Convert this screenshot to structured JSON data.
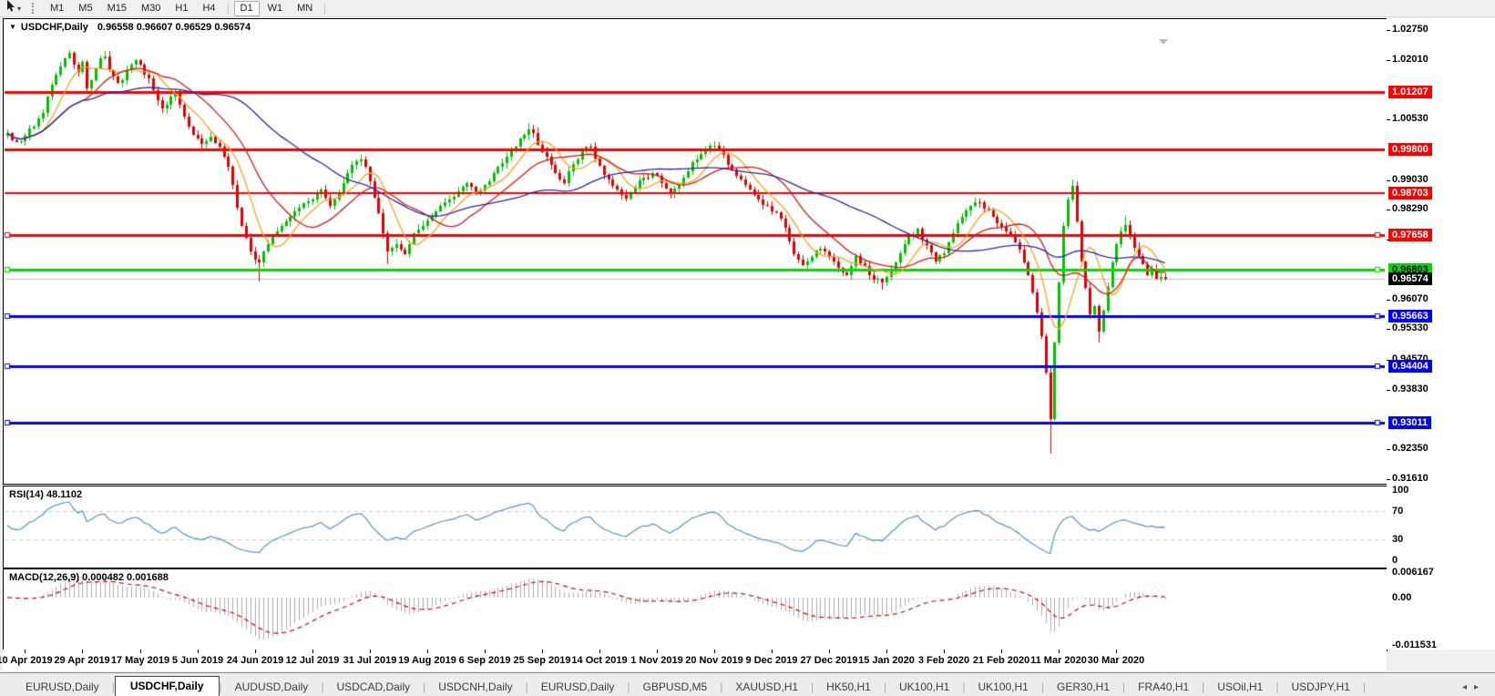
{
  "toolbar": {
    "cursor_tool": "cursor-pointer",
    "timeframes": [
      "M1",
      "M5",
      "M15",
      "M30",
      "H1",
      "H4",
      "D1",
      "W1",
      "MN"
    ],
    "active_timeframe": "D1"
  },
  "panels": {
    "main_title": "USDCHF,Daily",
    "main_ohlc": "0.96558 0.96607 0.96529 0.96574",
    "rsi_title": "RSI(14) 48.1102",
    "macd_title": "MACD(12,26,9) 0.000482 0.001688"
  },
  "colors": {
    "bull": "#00c000",
    "bear": "#e00000",
    "ma_fast": "#ff9e1b",
    "ma_mid": "#dc1414",
    "ma_slow": "#2a2aa5",
    "rsi_line": "#4d94d0",
    "rsi_levels": "#c8c8c8",
    "macd_hist": "#adadad",
    "macd_signal": "#e00000",
    "current_line": "#bebebe",
    "current_label_bg": "#000000"
  },
  "chart_data": {
    "type": "candlestick",
    "symbol": "USDCHF",
    "timeframe": "Daily",
    "last_ohlc": {
      "open": 0.96558,
      "high": 0.96607,
      "low": 0.96529,
      "close": 0.96574
    },
    "current_price": 0.96574,
    "current_price_label": "0.96574",
    "num_candles": 263,
    "close_keyframes": [
      [
        0,
        1.002
      ],
      [
        2,
        0.9998
      ],
      [
        4,
        1.0012
      ],
      [
        6,
        1.0035
      ],
      [
        8,
        1.007
      ],
      [
        9,
        1.011
      ],
      [
        10,
        1.014
      ],
      [
        11,
        1.0165
      ],
      [
        12,
        1.0185
      ],
      [
        13,
        1.0205
      ],
      [
        14,
        1.0218
      ],
      [
        15,
        1.019
      ],
      [
        16,
        1.017
      ],
      [
        17,
        1.0195
      ],
      [
        18,
        1.013
      ],
      [
        19,
        1.015
      ],
      [
        20,
        1.018
      ],
      [
        21,
        1.0205
      ],
      [
        22,
        1.021
      ],
      [
        23,
        1.0175
      ],
      [
        24,
        1.016
      ],
      [
        25,
        1.0145
      ],
      [
        26,
        1.015
      ],
      [
        27,
        1.0175
      ],
      [
        28,
        1.019
      ],
      [
        29,
        1.02
      ],
      [
        30,
        1.019
      ],
      [
        31,
        1.0165
      ],
      [
        32,
        1.0155
      ],
      [
        33,
        1.0125
      ],
      [
        34,
        1.01
      ],
      [
        35,
        1.008
      ],
      [
        36,
        1.009
      ],
      [
        37,
        1.011
      ],
      [
        38,
        1.012
      ],
      [
        39,
        1.009
      ],
      [
        40,
        1.006
      ],
      [
        41,
        1.0035
      ],
      [
        42,
        1.0015
      ],
      [
        43,
        1.0005
      ],
      [
        44,
        0.9992
      ],
      [
        45,
        1.0
      ],
      [
        46,
        1.001
      ],
      [
        47,
        0.9995
      ],
      [
        48,
        0.9985
      ],
      [
        49,
        0.996
      ],
      [
        50,
        0.9935
      ],
      [
        51,
        0.989
      ],
      [
        52,
        0.9835
      ],
      [
        53,
        0.979
      ],
      [
        54,
        0.976
      ],
      [
        55,
        0.9725
      ],
      [
        56,
        0.9705
      ],
      [
        57,
        0.9698
      ],
      [
        58,
        0.9725
      ],
      [
        59,
        0.9745
      ],
      [
        60,
        0.9765
      ],
      [
        61,
        0.9775
      ],
      [
        62,
        0.979
      ],
      [
        63,
        0.98
      ],
      [
        64,
        0.9812
      ],
      [
        65,
        0.9825
      ],
      [
        66,
        0.9835
      ],
      [
        67,
        0.9845
      ],
      [
        68,
        0.985
      ],
      [
        69,
        0.9855
      ],
      [
        70,
        0.987
      ],
      [
        71,
        0.988
      ],
      [
        72,
        0.986
      ],
      [
        73,
        0.984
      ],
      [
        74,
        0.9855
      ],
      [
        75,
        0.987
      ],
      [
        76,
        0.9895
      ],
      [
        77,
        0.992
      ],
      [
        78,
        0.994
      ],
      [
        79,
        0.995
      ],
      [
        80,
        0.9955
      ],
      [
        81,
        0.9935
      ],
      [
        82,
        0.99
      ],
      [
        83,
        0.986
      ],
      [
        84,
        0.982
      ],
      [
        85,
        0.977
      ],
      [
        86,
        0.9725
      ],
      [
        87,
        0.9735
      ],
      [
        88,
        0.9745
      ],
      [
        89,
        0.973
      ],
      [
        90,
        0.972
      ],
      [
        91,
        0.9745
      ],
      [
        92,
        0.977
      ],
      [
        93,
        0.978
      ],
      [
        94,
        0.979
      ],
      [
        96,
        0.9815
      ],
      [
        98,
        0.984
      ],
      [
        100,
        0.9855
      ],
      [
        102,
        0.9875
      ],
      [
        104,
        0.9895
      ],
      [
        106,
        0.987
      ],
      [
        108,
        0.989
      ],
      [
        110,
        0.992
      ],
      [
        112,
        0.9945
      ],
      [
        114,
        0.9975
      ],
      [
        116,
        1.0005
      ],
      [
        118,
        1.0028
      ],
      [
        119,
        1.002
      ],
      [
        120,
        0.999
      ],
      [
        122,
        0.9962
      ],
      [
        124,
        0.992
      ],
      [
        126,
        0.9895
      ],
      [
        128,
        0.9942
      ],
      [
        130,
        0.9975
      ],
      [
        132,
        0.9985
      ],
      [
        134,
        0.9938
      ],
      [
        136,
        0.9905
      ],
      [
        138,
        0.988
      ],
      [
        140,
        0.9858
      ],
      [
        142,
        0.9885
      ],
      [
        144,
        0.991
      ],
      [
        146,
        0.992
      ],
      [
        148,
        0.9895
      ],
      [
        150,
        0.9868
      ],
      [
        152,
        0.989
      ],
      [
        154,
        0.9925
      ],
      [
        156,
        0.9955
      ],
      [
        158,
        0.9975
      ],
      [
        160,
        0.9988
      ],
      [
        162,
        0.9965
      ],
      [
        164,
        0.993
      ],
      [
        166,
        0.9905
      ],
      [
        168,
        0.988
      ],
      [
        170,
        0.9855
      ],
      [
        172,
        0.984
      ],
      [
        174,
        0.9822
      ],
      [
        176,
        0.9785
      ],
      [
        178,
        0.972
      ],
      [
        180,
        0.9692
      ],
      [
        182,
        0.9712
      ],
      [
        184,
        0.9732
      ],
      [
        186,
        0.9712
      ],
      [
        188,
        0.9685
      ],
      [
        190,
        0.9668
      ],
      [
        192,
        0.9715
      ],
      [
        194,
        0.969
      ],
      [
        196,
        0.9655
      ],
      [
        198,
        0.9648
      ],
      [
        200,
        0.9682
      ],
      [
        202,
        0.9722
      ],
      [
        204,
        0.9762
      ],
      [
        206,
        0.9782
      ],
      [
        208,
        0.9742
      ],
      [
        210,
        0.97
      ],
      [
        212,
        0.9722
      ],
      [
        214,
        0.9772
      ],
      [
        216,
        0.9812
      ],
      [
        218,
        0.9838
      ],
      [
        220,
        0.9848
      ],
      [
        222,
        0.9828
      ],
      [
        224,
        0.9795
      ],
      [
        226,
        0.9775
      ],
      [
        228,
        0.9748
      ],
      [
        230,
        0.9698
      ],
      [
        231,
        0.9668
      ],
      [
        232,
        0.9625
      ],
      [
        233,
        0.9575
      ],
      [
        234,
        0.9515
      ],
      [
        235,
        0.9425
      ],
      [
        236,
        0.931
      ],
      [
        237,
        0.95
      ],
      [
        238,
        0.965
      ],
      [
        239,
        0.979
      ],
      [
        240,
        0.9855
      ],
      [
        241,
        0.9888
      ],
      [
        242,
        0.98
      ],
      [
        243,
        0.97
      ],
      [
        244,
        0.9635
      ],
      [
        245,
        0.957
      ],
      [
        246,
        0.959
      ],
      [
        247,
        0.9528
      ],
      [
        248,
        0.9578
      ],
      [
        249,
        0.9638
      ],
      [
        250,
        0.9698
      ],
      [
        251,
        0.9745
      ],
      [
        252,
        0.9775
      ],
      [
        253,
        0.9792
      ],
      [
        254,
        0.9762
      ],
      [
        255,
        0.9735
      ],
      [
        256,
        0.9715
      ],
      [
        257,
        0.9695
      ],
      [
        258,
        0.9668
      ],
      [
        259,
        0.9682
      ],
      [
        260,
        0.9658
      ],
      [
        261,
        0.9662
      ],
      [
        262,
        0.96574
      ]
    ],
    "high_overrides": {
      "14": 1.0226,
      "22": 1.0222,
      "118": 1.0045,
      "241": 0.9905,
      "253": 0.9815
    },
    "low_overrides": {
      "57": 0.9652,
      "86": 0.9695,
      "198": 0.9632,
      "236": 0.9225,
      "247": 0.95
    },
    "y_axis": {
      "range": [
        0.9161,
        1.0275
      ],
      "ticks": [
        "1.02750",
        "1.02010",
        "1.00530",
        "0.99030",
        "0.98290",
        "0.97550",
        "0.96070",
        "0.95330",
        "0.94570",
        "0.93830",
        "0.92350",
        "0.91610"
      ]
    },
    "x_axis": {
      "tick_indices": [
        4,
        17,
        30,
        43,
        56,
        69,
        82,
        95,
        108,
        121,
        134,
        147,
        160,
        173,
        186,
        199,
        212,
        225,
        238,
        251
      ],
      "tick_labels": [
        "10 Apr 2019",
        "29 Apr 2019",
        "17 May 2019",
        "5 Jun 2019",
        "24 Jun 2019",
        "12 Jul 2019",
        "31 Jul 2019",
        "19 Aug 2019",
        "6 Sep 2019",
        "25 Sep 2019",
        "14 Oct 2019",
        "1 Nov 2019",
        "20 Nov 2019",
        "9 Dec 2019",
        "27 Dec 2019",
        "15 Jan 2020",
        "3 Feb 2020",
        "21 Feb 2020",
        "11 Mar 2020",
        "30 Mar 2020"
      ]
    },
    "horizontal_lines": [
      {
        "price": 1.01207,
        "label": "1.01207",
        "color": "#ff0000",
        "width": 3,
        "handles": false,
        "text": "#ffffff"
      },
      {
        "price": 0.998,
        "label": "0.99800",
        "color": "#ff0000",
        "width": 3,
        "handles": false,
        "text": "#ffffff"
      },
      {
        "price": 0.98703,
        "label": "0.98703",
        "color": "#ff0000",
        "width": 2,
        "handles": false,
        "text": "#ffffff"
      },
      {
        "price": 0.97658,
        "label": "0.97658",
        "color": "#ff0000",
        "width": 3,
        "handles": true,
        "text": "#ffffff"
      },
      {
        "price": 0.96803,
        "label": "0.96803",
        "color": "#00dc00",
        "width": 3,
        "handles": true,
        "text": "#000000"
      },
      {
        "price": 0.95663,
        "label": "0.95663",
        "color": "#0000ff",
        "width": 3,
        "handles": true,
        "text": "#ffffff"
      },
      {
        "price": 0.94404,
        "label": "0.94404",
        "color": "#0000ff",
        "width": 3,
        "handles": true,
        "text": "#ffffff"
      },
      {
        "price": 0.93011,
        "label": "0.93011",
        "color": "#0000ff",
        "width": 3,
        "handles": true,
        "text": "#ffffff"
      }
    ],
    "moving_averages": [
      {
        "name": "ma-fast",
        "period": 8,
        "color": "#ff9e1b"
      },
      {
        "name": "ma-mid",
        "period": 18,
        "color": "#dc1414"
      },
      {
        "name": "ma-slow",
        "period": 45,
        "color": "#2a2aa5"
      }
    ],
    "indicators": [
      {
        "type": "rsi",
        "period": 14,
        "current": 48.1102,
        "levels": [
          70,
          30
        ],
        "axis_labels": [
          "100",
          "70",
          "30",
          "0"
        ],
        "axis_values": [
          100,
          70,
          30,
          0
        ],
        "range": [
          0,
          100
        ]
      },
      {
        "type": "macd",
        "fast": 12,
        "slow": 26,
        "signal": 9,
        "current_main": 0.000482,
        "current_signal": 0.001688,
        "axis_labels": [
          "0.006167",
          "0.00",
          "-0.011531"
        ],
        "axis_values": [
          0.006167,
          0,
          -0.011531
        ],
        "scale_max": 0.006167,
        "scale_min": -0.011531
      }
    ]
  },
  "tabs": {
    "items": [
      {
        "label": "EURUSD,Daily",
        "active": false
      },
      {
        "label": "USDCHF,Daily",
        "active": true
      },
      {
        "label": "AUDUSD,Daily",
        "active": false
      },
      {
        "label": "USDCAD,Daily",
        "active": false
      },
      {
        "label": "USDCNH,Daily",
        "active": false
      },
      {
        "label": "EURUSD,Daily",
        "active": false
      },
      {
        "label": "GBPUSD,M5",
        "active": false
      },
      {
        "label": "XAUUSD,H1",
        "active": false
      },
      {
        "label": "HK50,H1",
        "active": false
      },
      {
        "label": "UK100,H1",
        "active": false
      },
      {
        "label": "UK100,H1",
        "active": false
      },
      {
        "label": "GER30,H1",
        "active": false
      },
      {
        "label": "FRA40,H1",
        "active": false
      },
      {
        "label": "USOil,H1",
        "active": false
      },
      {
        "label": "USDJPY,H1",
        "active": false
      }
    ],
    "scroll_left": "◂",
    "scroll_right": "▸"
  }
}
